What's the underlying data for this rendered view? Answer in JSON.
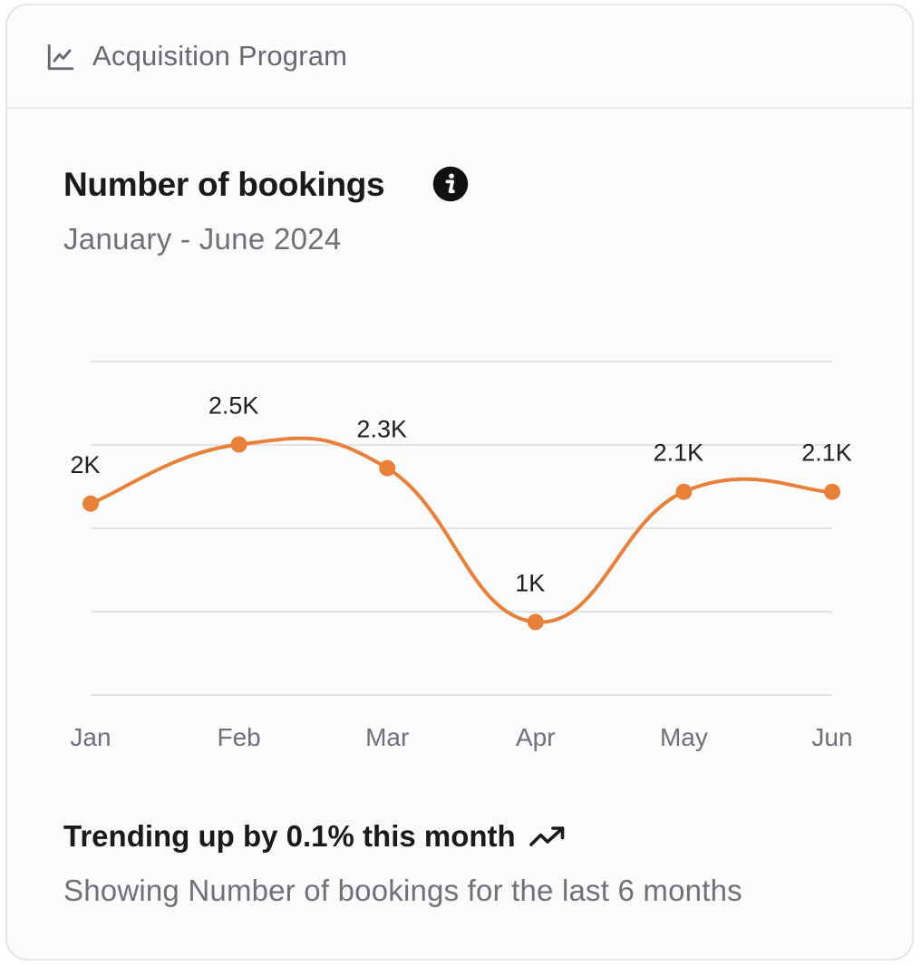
{
  "header": {
    "title": "Acquisition Program",
    "icon": "line-chart-icon"
  },
  "chart_data": {
    "type": "line",
    "title": "Number of bookings",
    "subtitle": "January - June 2024",
    "categories": [
      "Jan",
      "Feb",
      "Mar",
      "Apr",
      "May",
      "Jun"
    ],
    "series": [
      {
        "values": [
          2000,
          2500,
          2300,
          1000,
          2100,
          2100
        ],
        "labels": [
          "2K",
          "2.5K",
          "2.3K",
          "1K",
          "2.1K",
          "2.1K"
        ],
        "color": "#e8803a"
      }
    ],
    "grid": true,
    "curve": "smooth",
    "legend": "none",
    "xlabel": "",
    "ylabel": ""
  },
  "footer": {
    "trend_text": "Trending up by 0.1% this month",
    "trend_icon": "trending-up-icon",
    "note": "Showing Number of bookings for the last 6 months"
  },
  "colors": {
    "line": "#e8803a",
    "grid": "#e4e4e4",
    "text_primary": "#1a1a1a",
    "text_muted": "#6e7177"
  }
}
